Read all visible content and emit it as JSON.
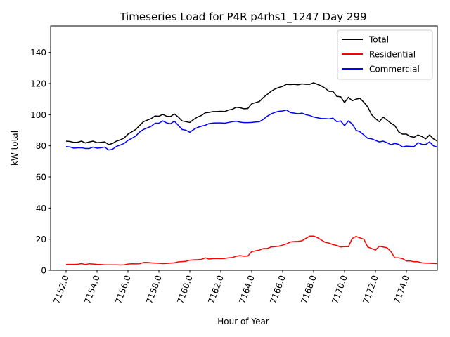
{
  "chart_data": {
    "type": "line",
    "title": "Timeseries Load for P4R p4rhs1_1247  Day 299",
    "xlabel": "Hour of Year",
    "ylabel": "kW total",
    "xlim": [
      7151.0,
      7176.0
    ],
    "ylim": [
      0,
      157
    ],
    "xticks": [
      7152.0,
      7154.0,
      7156.0,
      7158.0,
      7160.0,
      7162.0,
      7164.0,
      7166.0,
      7168.0,
      7170.0,
      7172.0,
      7174.0
    ],
    "xtick_labels": [
      "7152.0",
      "7154.0",
      "7156.0",
      "7158.0",
      "7160.0",
      "7162.0",
      "7164.0",
      "7166.0",
      "7168.0",
      "7170.0",
      "7172.0",
      "7174.0"
    ],
    "yticks": [
      0,
      20,
      40,
      60,
      80,
      100,
      120,
      140
    ],
    "ytick_labels": [
      "0",
      "20",
      "40",
      "60",
      "80",
      "100",
      "120",
      "140"
    ],
    "x_start": 7152.0,
    "x_step": 0.25,
    "legend_location": "top-right",
    "series": [
      {
        "name": "Total",
        "color": "#000000",
        "values": [
          83.0,
          82.8,
          82.2,
          82.3,
          83.0,
          81.8,
          82.5,
          83.0,
          82.0,
          82.2,
          82.5,
          80.8,
          81.5,
          83.0,
          83.8,
          85.0,
          87.5,
          89.0,
          90.5,
          93.0,
          95.5,
          96.5,
          97.5,
          99.2,
          99.0,
          100.2,
          99.0,
          98.8,
          100.5,
          98.5,
          96.0,
          95.5,
          95.0,
          97.0,
          98.5,
          99.5,
          101.2,
          101.5,
          102.0,
          102.0,
          102.2,
          102.0,
          103.0,
          103.5,
          104.8,
          104.5,
          103.8,
          104.0,
          107.0,
          107.8,
          108.5,
          111.0,
          113.0,
          115.0,
          116.5,
          117.5,
          118.2,
          119.5,
          119.3,
          119.5,
          119.2,
          119.8,
          119.5,
          119.5,
          120.5,
          119.5,
          118.5,
          117.0,
          115.0,
          115.0,
          111.8,
          111.5,
          107.8,
          111.2,
          109.0,
          110.0,
          110.5,
          108.0,
          105.0,
          100.0,
          97.5,
          95.5,
          98.5,
          96.5,
          94.5,
          93.0,
          89.0,
          87.5,
          87.5,
          86.0,
          85.5,
          87.0,
          86.0,
          84.5,
          87.0,
          84.5,
          83.0
        ]
      },
      {
        "name": "Residential",
        "color": "#ff0000",
        "values": [
          3.8,
          3.8,
          3.8,
          3.9,
          4.3,
          3.7,
          4.2,
          4.0,
          3.8,
          3.7,
          3.5,
          3.5,
          3.5,
          3.5,
          3.4,
          3.5,
          4.0,
          4.2,
          4.1,
          4.2,
          5.0,
          5.0,
          4.8,
          4.6,
          4.5,
          4.3,
          4.4,
          4.6,
          4.8,
          5.4,
          5.6,
          5.8,
          6.5,
          6.7,
          6.8,
          7.0,
          8.0,
          7.2,
          7.5,
          7.6,
          7.5,
          7.6,
          8.0,
          8.2,
          9.0,
          9.5,
          9.0,
          9.2,
          12.0,
          12.5,
          13.0,
          14.0,
          14.0,
          15.0,
          15.2,
          15.5,
          16.2,
          17.0,
          18.2,
          18.5,
          18.6,
          19.0,
          20.5,
          22.0,
          22.0,
          21.0,
          19.5,
          18.0,
          17.5,
          16.5,
          16.0,
          15.0,
          15.2,
          15.2,
          20.5,
          21.8,
          20.8,
          20.0,
          15.0,
          14.0,
          13.0,
          15.5,
          15.0,
          14.5,
          12.0,
          8.0,
          8.0,
          7.5,
          6.0,
          6.0,
          5.5,
          5.5,
          4.8,
          4.6,
          4.5,
          4.4,
          4.3
        ]
      },
      {
        "name": "Commercial",
        "color": "#0000ff",
        "values": [
          79.5,
          79.3,
          78.5,
          78.7,
          78.8,
          78.3,
          78.3,
          79.2,
          78.5,
          78.7,
          79.2,
          77.3,
          77.8,
          79.6,
          80.5,
          81.5,
          83.5,
          84.8,
          86.3,
          88.8,
          90.5,
          91.5,
          92.5,
          94.5,
          94.5,
          96.0,
          94.7,
          94.2,
          95.8,
          93.2,
          90.5,
          90.0,
          88.7,
          90.5,
          91.8,
          92.6,
          93.2,
          94.3,
          94.6,
          94.7,
          94.7,
          94.5,
          95.0,
          95.5,
          95.8,
          95.2,
          94.9,
          94.9,
          95.0,
          95.3,
          95.5,
          97.0,
          99.0,
          100.5,
          101.5,
          102.2,
          102.4,
          103.0,
          101.4,
          101.0,
          100.6,
          101.0,
          100.0,
          99.5,
          98.5,
          98.0,
          97.5,
          97.5,
          97.3,
          97.8,
          95.5,
          96.0,
          93.0,
          96.0,
          94.0,
          90.0,
          89.0,
          87.0,
          84.8,
          84.5,
          83.5,
          82.5,
          83.0,
          82.0,
          80.7,
          81.5,
          81.0,
          79.3,
          79.8,
          79.6,
          79.5,
          82.0,
          81.0,
          80.8,
          82.5,
          80.0,
          79.2
        ]
      }
    ]
  }
}
